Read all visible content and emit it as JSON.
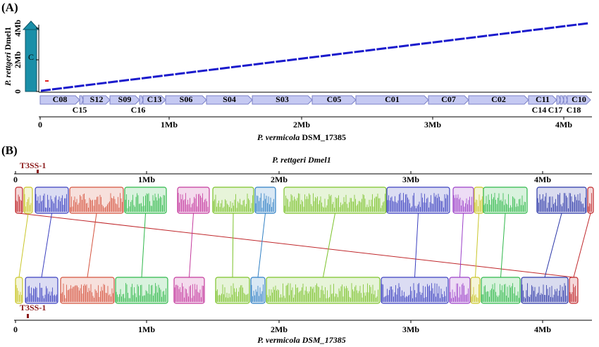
{
  "panel_a": {
    "label": "(A)",
    "y_label_italic": "P. rettgeri",
    "y_label_rest": " Dmel1",
    "y_ticks": [
      "0",
      "2Mb",
      "4Mb"
    ],
    "ring_label": "C",
    "contigs_inside": [
      "C08",
      "S12",
      "S09",
      "C13",
      "S06",
      "S04",
      "S03",
      "C05",
      "C01",
      "C07",
      "C02",
      "C11",
      "C10"
    ],
    "contigs_below": [
      "C15",
      "C16",
      "C14",
      "C17",
      "C18"
    ],
    "x_ticks": [
      "0",
      "1Mb",
      "2Mb",
      "3Mb",
      "4Mb"
    ],
    "x_label_italic": "P. vermicola",
    "x_label_rest": " DSM_17385"
  },
  "panel_b": {
    "label": "(B)",
    "top_title": "P. rettgeri Dmel1",
    "top_marker": "T3SS-1",
    "top_ticks": [
      "0",
      "1Mb",
      "2Mb",
      "3Mb",
      "4Mb"
    ],
    "bottom_marker": "T3SS-1",
    "bottom_ticks": [
      "0",
      "1Mb",
      "2Mb",
      "3Mb",
      "4Mb"
    ],
    "bottom_title": "P. vermicola DSM_17385"
  }
}
